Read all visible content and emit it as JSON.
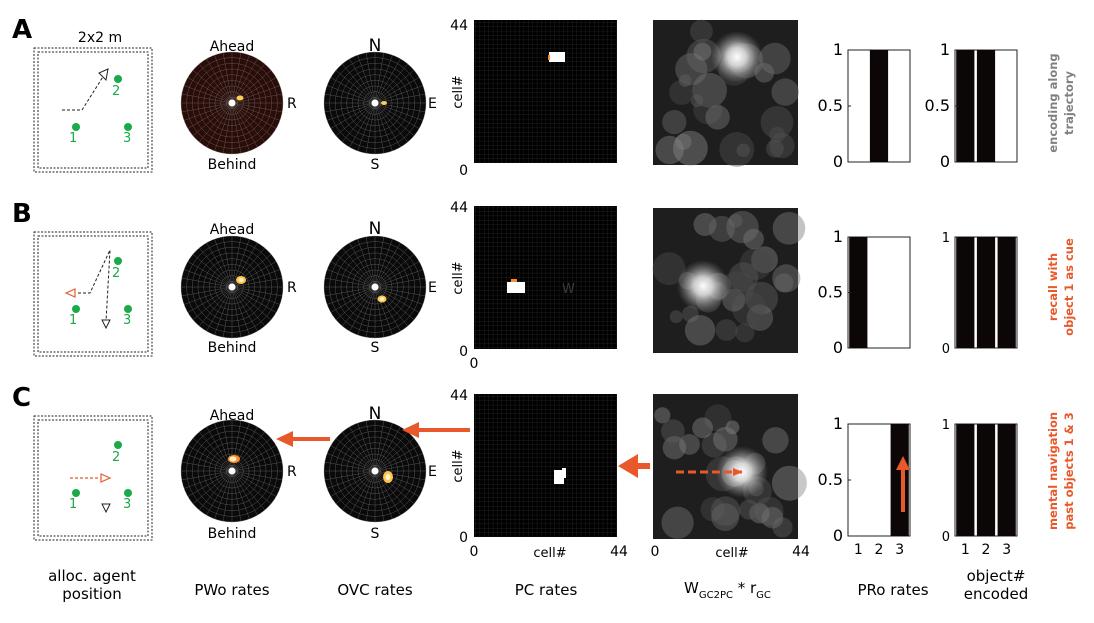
{
  "figure": {
    "row_labels": [
      "A",
      "B",
      "C"
    ],
    "arena_size_label": "2x2 m",
    "object_numbers": [
      "1",
      "2",
      "3"
    ],
    "pwo_labels": {
      "top": "Ahead",
      "bottom": "Behind",
      "right": "R"
    },
    "ovc_labels": {
      "top": "N",
      "bottom": "S",
      "right": "E"
    },
    "pc_axis": {
      "ylabel": "cell#",
      "xlabel": "cell#",
      "y_top": "44",
      "y_bottom": "0",
      "x_left": "0",
      "x_right": "44"
    },
    "gc_axis": {
      "xlabel": "cell#",
      "x_left": "0",
      "x_right": "44"
    },
    "stray_label_b": "W",
    "side_labels": {
      "a": [
        "encoding along",
        "trajectory"
      ],
      "b": [
        "recall with",
        "object 1 as cue"
      ],
      "c": [
        "mental navigation",
        "past objects 1 & 3"
      ]
    },
    "bottom_labels": {
      "agent": [
        "alloc. agent",
        "position"
      ],
      "pwo": "PWo rates",
      "ovc": "OVC rates",
      "pc": "PC rates",
      "gc_main": "W",
      "gc_sub1": "GC2PC",
      "gc_star": " * r",
      "gc_sub2": "GC",
      "pro": "PRo rates",
      "obj": [
        "object#",
        "encoded"
      ]
    },
    "colors": {
      "accent": "#e8582a",
      "object": "#1aaa4a",
      "gray_label": "#808080"
    }
  },
  "chart_data": [
    {
      "panel": "A",
      "type": "bar",
      "title": "PRo rates",
      "categories": [
        "1",
        "2",
        "3"
      ],
      "values": [
        0,
        1,
        0
      ],
      "ylim": [
        0,
        1
      ],
      "yticks": [
        "0",
        "0.5",
        "1"
      ]
    },
    {
      "panel": "A",
      "type": "bar",
      "title": "object# encoded",
      "categories": [
        "1",
        "2",
        "3"
      ],
      "values": [
        1,
        1,
        0
      ],
      "ylim": [
        0,
        1
      ],
      "yticks": [
        "0",
        "0.5",
        "1"
      ]
    },
    {
      "panel": "B",
      "type": "bar",
      "title": "PRo rates",
      "categories": [
        "1",
        "2",
        "3"
      ],
      "values": [
        1,
        0,
        0
      ],
      "ylim": [
        0,
        1
      ],
      "yticks": [
        "0",
        "0.5",
        "1"
      ]
    },
    {
      "panel": "B",
      "type": "bar",
      "title": "object# encoded",
      "categories": [
        "1",
        "2",
        "3"
      ],
      "values": [
        1,
        1,
        1
      ],
      "ylim": [
        0,
        1
      ],
      "yticks": [
        "0",
        "1"
      ]
    },
    {
      "panel": "C",
      "type": "bar",
      "title": "PRo rates",
      "categories": [
        "1",
        "2",
        "3"
      ],
      "values": [
        0,
        0,
        1
      ],
      "ylim": [
        0,
        1
      ],
      "yticks": [
        "0",
        "0.5",
        "1"
      ]
    },
    {
      "panel": "C",
      "type": "bar",
      "title": "object# encoded",
      "categories": [
        "1",
        "2",
        "3"
      ],
      "values": [
        1,
        1,
        1
      ],
      "ylim": [
        0,
        1
      ],
      "yticks": [
        "0",
        "1"
      ]
    }
  ]
}
